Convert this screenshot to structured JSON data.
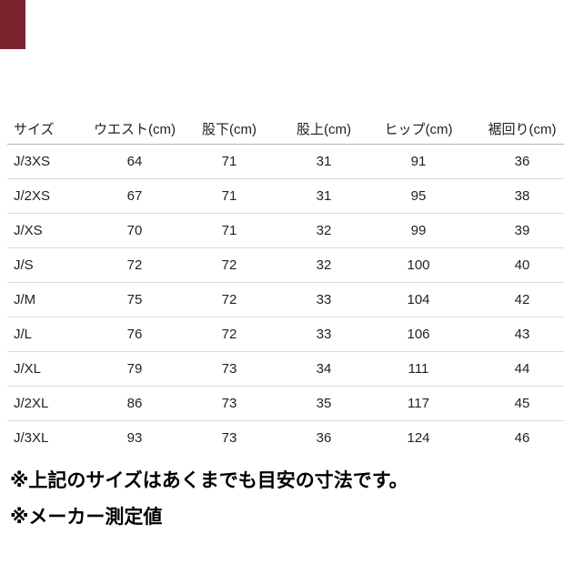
{
  "corner_badge": {
    "color": "#7a232e"
  },
  "table": {
    "columns": [
      "サイズ",
      "ウエスト(cm)",
      "股下(cm)",
      "股上(cm)",
      "ヒップ(cm)",
      "裾回り(cm)"
    ],
    "rows": [
      {
        "size": "J/3XS",
        "values": [
          "64",
          "71",
          "31",
          "91",
          "36"
        ]
      },
      {
        "size": "J/2XS",
        "values": [
          "67",
          "71",
          "31",
          "95",
          "38"
        ]
      },
      {
        "size": "J/XS",
        "values": [
          "70",
          "71",
          "32",
          "99",
          "39"
        ]
      },
      {
        "size": "J/S",
        "values": [
          "72",
          "72",
          "32",
          "100",
          "40"
        ]
      },
      {
        "size": "J/M",
        "values": [
          "75",
          "72",
          "33",
          "104",
          "42"
        ]
      },
      {
        "size": "J/L",
        "values": [
          "76",
          "72",
          "33",
          "106",
          "43"
        ]
      },
      {
        "size": "J/XL",
        "values": [
          "79",
          "73",
          "34",
          "111",
          "44"
        ]
      },
      {
        "size": "J/2XL",
        "values": [
          "86",
          "73",
          "35",
          "117",
          "45"
        ]
      },
      {
        "size": "J/3XL",
        "values": [
          "93",
          "73",
          "36",
          "124",
          "46"
        ]
      }
    ],
    "line_colors": {
      "header_border": "#b3b3b3",
      "row_border": "#d9d9d9"
    }
  },
  "notes": [
    "※上記のサイズはあくまでも目安の寸法です。",
    "※メーカー測定値"
  ],
  "chart_data": {
    "type": "table",
    "categories": [
      "J/3XS",
      "J/2XS",
      "J/XS",
      "J/S",
      "J/M",
      "J/L",
      "J/XL",
      "J/2XL",
      "J/3XL"
    ],
    "series": [
      {
        "name": "ウエスト(cm)",
        "values": [
          64,
          67,
          70,
          72,
          75,
          76,
          79,
          86,
          93
        ]
      },
      {
        "name": "股下(cm)",
        "values": [
          71,
          71,
          71,
          72,
          72,
          72,
          73,
          73,
          73
        ]
      },
      {
        "name": "股上(cm)",
        "values": [
          31,
          31,
          32,
          32,
          33,
          33,
          34,
          35,
          36
        ]
      },
      {
        "name": "ヒップ(cm)",
        "values": [
          91,
          95,
          99,
          100,
          104,
          106,
          111,
          117,
          124
        ]
      },
      {
        "name": "裾回り(cm)",
        "values": [
          36,
          38,
          39,
          40,
          42,
          43,
          44,
          45,
          46
        ]
      }
    ],
    "row_header_label": "サイズ",
    "footnotes": [
      "※上記のサイズはあくまでも目安の寸法です。",
      "※メーカー測定値"
    ]
  }
}
